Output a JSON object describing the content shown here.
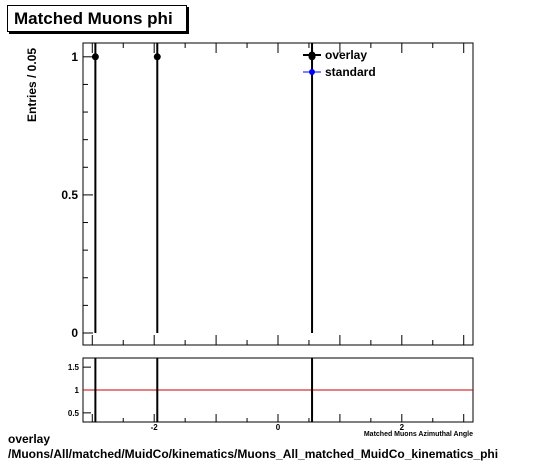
{
  "title": "Matched Muons phi",
  "footer": {
    "line1": "overlay",
    "line2": "/Muons/All/matched/MuidCo/kinematics/Muons_All_matched_MuidCo_kinematics_phi"
  },
  "colors": {
    "overlay": "#000000",
    "standard": "#0000ff",
    "ratio_reference": "#cc0000"
  },
  "chart_data": [
    {
      "type": "scatter",
      "ylabel": "Entries / 0.05",
      "xlim": [
        -3.15,
        3.15
      ],
      "ylim": [
        0,
        1.05
      ],
      "y_ticks": [
        0,
        0.5,
        1
      ],
      "y_tick_labels": [
        "0",
        "0.5",
        "1"
      ],
      "legend_position": "top-right",
      "series": [
        {
          "name": "overlay",
          "marker": "black-filled-circle",
          "points": [
            {
              "x": -2.95,
              "y": 1
            },
            {
              "x": -1.95,
              "y": 1
            },
            {
              "x": 0.55,
              "y": 1
            }
          ]
        },
        {
          "name": "standard",
          "marker": "blue-filled-circle",
          "points": []
        }
      ]
    },
    {
      "type": "line",
      "xlabel": "Matched Muons Azimuthal Angle",
      "xlim": [
        -3.15,
        3.15
      ],
      "ylim": [
        0.3,
        1.7
      ],
      "x_ticks": [
        -2,
        0,
        2
      ],
      "x_tick_labels": [
        "-2",
        "0",
        "2"
      ],
      "y_ticks": [
        0.5,
        1,
        1.5
      ],
      "y_tick_labels": [
        "0.5",
        "1",
        "1.5"
      ],
      "reference_line": 1,
      "spikes_x": [
        -2.95,
        -1.95,
        0.55
      ]
    }
  ]
}
